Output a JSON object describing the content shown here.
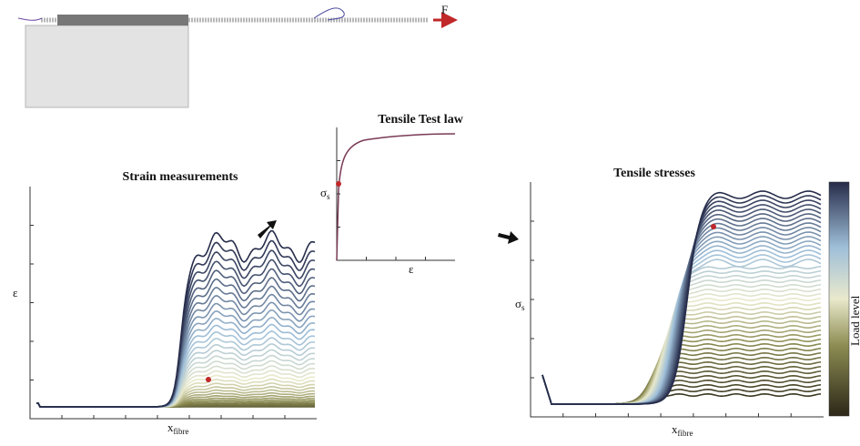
{
  "fibre_sketch": {
    "force_label": "F"
  },
  "strain_panel": {
    "title": "Strain measurements",
    "y_label": "ε",
    "x_label": "x",
    "x_label_sub": "fibre"
  },
  "law_panel": {
    "title": "Tensile Test law",
    "y_label": "σ",
    "y_label_sub": "s",
    "x_label": "ε"
  },
  "stress_panel": {
    "title": "Tensile stresses",
    "y_label": "σ",
    "y_label_sub": "s",
    "x_label": "x",
    "x_label_sub": "fibre",
    "colorbar_label": "Load level"
  }
}
